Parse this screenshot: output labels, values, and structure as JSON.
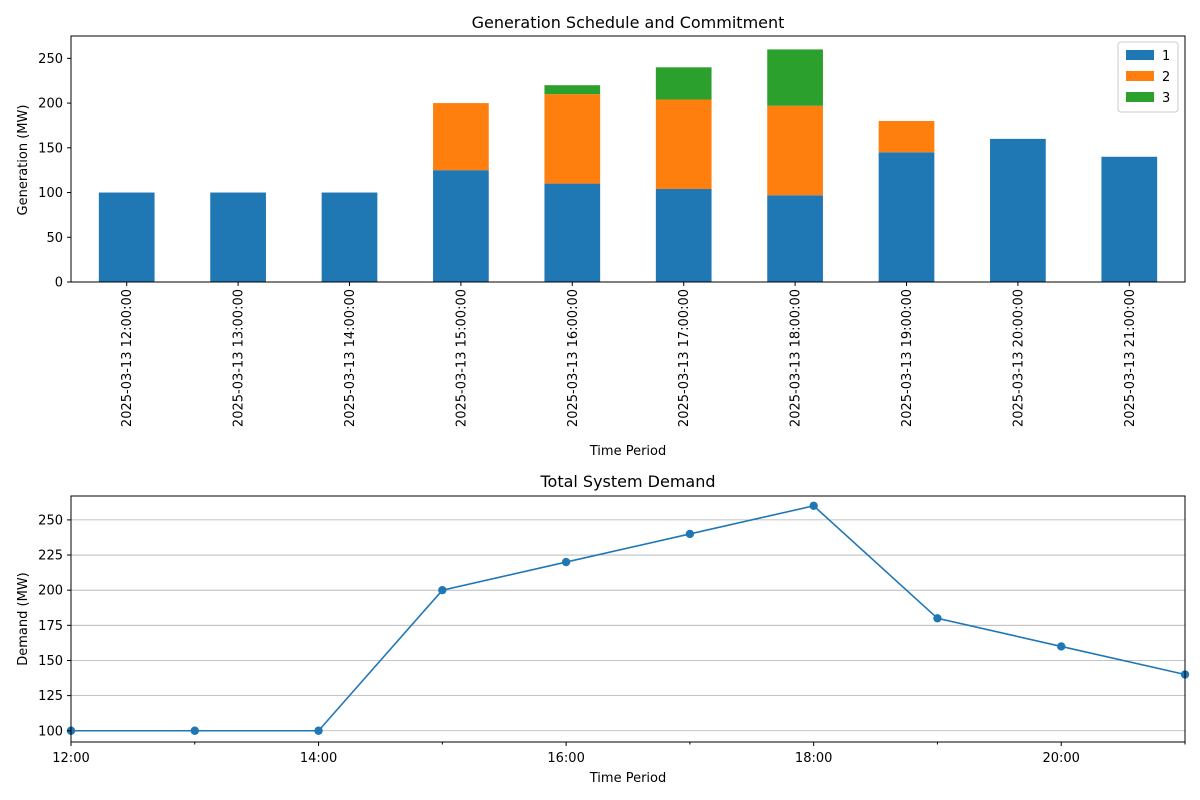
{
  "chart_data": [
    {
      "type": "bar",
      "stacked": true,
      "title": "Generation Schedule and Commitment",
      "xlabel": "Time Period",
      "ylabel": "Generation (MW)",
      "ylim": [
        0,
        275
      ],
      "yticks": [
        0,
        50,
        100,
        150,
        200,
        250
      ],
      "categories": [
        "2025-03-13 12:00:00",
        "2025-03-13 13:00:00",
        "2025-03-13 14:00:00",
        "2025-03-13 15:00:00",
        "2025-03-13 16:00:00",
        "2025-03-13 17:00:00",
        "2025-03-13 18:00:00",
        "2025-03-13 19:00:00",
        "2025-03-13 20:00:00",
        "2025-03-13 21:00:00"
      ],
      "series": [
        {
          "name": "1",
          "color": "#1f77b4",
          "values": [
            100,
            100,
            100,
            125,
            110,
            104,
            97,
            145,
            160,
            140
          ]
        },
        {
          "name": "2",
          "color": "#ff7f0e",
          "values": [
            0,
            0,
            0,
            75,
            100,
            100,
            100,
            35,
            0,
            0
          ]
        },
        {
          "name": "3",
          "color": "#2ca02c",
          "values": [
            0,
            0,
            0,
            0,
            10,
            36,
            63,
            0,
            0,
            0
          ]
        }
      ],
      "legend_position": "top-right",
      "grid": false
    },
    {
      "type": "line",
      "title": "Total System Demand",
      "xlabel": "Time Period",
      "ylabel": "Demand (MW)",
      "ylim": [
        92,
        267
      ],
      "yticks": [
        100,
        125,
        150,
        175,
        200,
        225,
        250
      ],
      "x": [
        "12:00",
        "13:00",
        "14:00",
        "15:00",
        "16:00",
        "17:00",
        "18:00",
        "19:00",
        "20:00",
        "21:00"
      ],
      "xticks": [
        "12:00",
        "14:00",
        "16:00",
        "18:00",
        "20:00"
      ],
      "values": [
        100,
        100,
        100,
        200,
        220,
        240,
        260,
        180,
        160,
        140
      ],
      "color": "#1f77b4",
      "grid": "y"
    }
  ]
}
